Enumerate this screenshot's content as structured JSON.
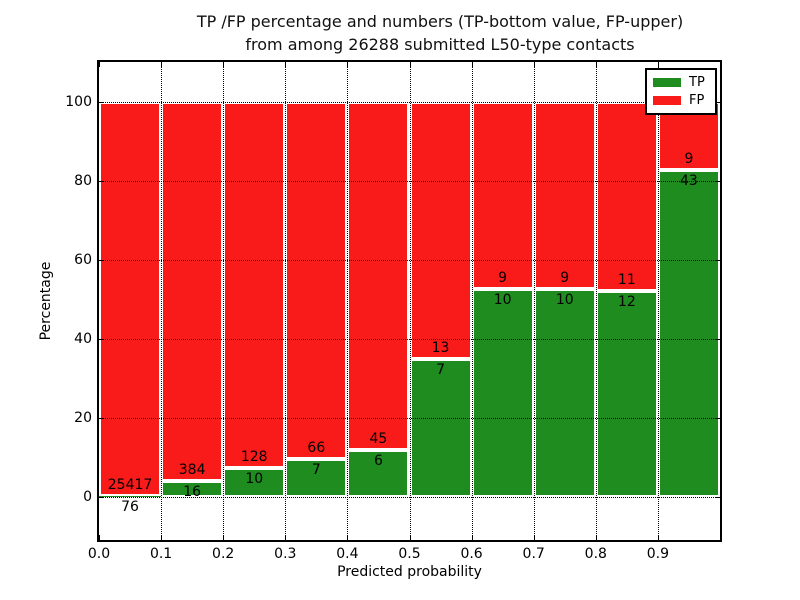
{
  "title": {
    "line1": "TP /FP percentage and numbers (TP-bottom value, FP-upper)",
    "line2": "from among 26288 submitted L50-type contacts"
  },
  "axes": {
    "xlabel": "Predicted probability",
    "ylabel": "Percentage"
  },
  "legend": {
    "items": [
      {
        "label": "TP",
        "color": "#1e8c1e"
      },
      {
        "label": "FP",
        "color": "#f91a1a"
      }
    ]
  },
  "chart_data": {
    "type": "bar",
    "stacked": true,
    "title": "TP /FP percentage and numbers (TP-bottom value, FP-upper) from among 26288 submitted L50-type contacts",
    "xlabel": "Predicted probability",
    "ylabel": "Percentage",
    "total_contacts": 26288,
    "bin_edges": [
      0.0,
      0.1,
      0.2,
      0.3,
      0.4,
      0.5,
      0.6,
      0.7,
      0.8,
      0.9,
      1.0
    ],
    "categories": [
      "0.0-0.1",
      "0.1-0.2",
      "0.2-0.3",
      "0.3-0.4",
      "0.4-0.5",
      "0.5-0.6",
      "0.6-0.7",
      "0.7-0.8",
      "0.8-0.9",
      "0.9-1.0"
    ],
    "series": [
      {
        "name": "TP",
        "color": "#1e8c1e",
        "counts": [
          76,
          16,
          10,
          7,
          6,
          7,
          10,
          10,
          12,
          43
        ]
      },
      {
        "name": "FP",
        "color": "#f91a1a",
        "counts": [
          25417,
          384,
          128,
          66,
          45,
          13,
          9,
          9,
          11,
          9
        ]
      }
    ],
    "bar_display": "per bin, green height = tp/(tp+fp)*100, red stacked on top to 100%",
    "xticks": {
      "values": [
        0.0,
        0.1,
        0.2,
        0.3,
        0.4,
        0.5,
        0.6,
        0.7,
        0.8,
        0.9
      ],
      "labels": [
        "0.0",
        "0.1",
        "0.2",
        "0.3",
        "0.4",
        "0.5",
        "0.6",
        "0.7",
        "0.8",
        "0.9"
      ]
    },
    "yticks": {
      "values": [
        0,
        20,
        40,
        60,
        80,
        100
      ],
      "labels": [
        "0",
        "20",
        "40",
        "60",
        "80",
        "100"
      ]
    },
    "xlim": [
      0.0,
      1.0
    ],
    "ylim": [
      -10.9,
      110.0
    ],
    "grid": true,
    "legend_position": "upper right",
    "bar_edge_color": "#ffffff"
  }
}
